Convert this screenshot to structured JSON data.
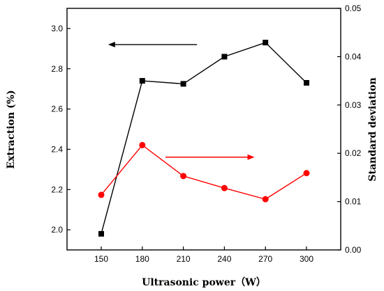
{
  "chart_data": {
    "type": "line",
    "x": [
      150,
      180,
      210,
      240,
      270,
      300
    ],
    "xlabel": "Ultrasonic power（W）",
    "xlim": [
      125,
      325
    ],
    "xticks": [
      150,
      180,
      210,
      240,
      270,
      300
    ],
    "ylabel": "Extraction  (%)",
    "ylim": [
      1.9,
      3.1
    ],
    "yticks": [
      2.0,
      2.2,
      2.4,
      2.6,
      2.8,
      3.0
    ],
    "y2label": "Standard deviation",
    "y2lim": [
      0.0,
      0.05
    ],
    "y2ticks": [
      0.0,
      0.01,
      0.02,
      0.03,
      0.04,
      0.05
    ],
    "series": [
      {
        "axis": "left",
        "color": "#000000",
        "marker": "square",
        "values": [
          1.98,
          2.74,
          2.725,
          2.86,
          2.93,
          2.73
        ]
      },
      {
        "axis": "right",
        "color": "#ff0000",
        "marker": "circle",
        "values": [
          0.0114,
          0.0217,
          0.0153,
          0.0128,
          0.0105,
          0.0159
        ]
      }
    ],
    "annotations": [
      {
        "type": "arrow",
        "direction": "left",
        "color": "#000000",
        "x_from": 220,
        "x_to": 155,
        "y_axis": "left",
        "y": 2.92
      },
      {
        "type": "arrow",
        "direction": "right",
        "color": "#ff0000",
        "x_from": 197,
        "x_to": 262,
        "y_axis": "right",
        "y": 0.0192
      }
    ],
    "grid": false,
    "legend": "none"
  }
}
